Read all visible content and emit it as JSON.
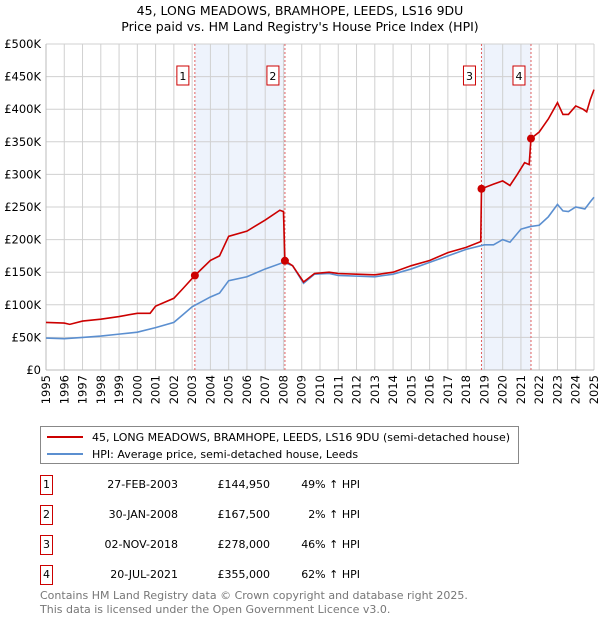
{
  "chart_data": {
    "type": "line",
    "title": "45, LONG MEADOWS, BRAMHOPE, LEEDS, LS16 9DU",
    "subtitle": "Price paid vs. HM Land Registry's House Price Index (HPI)",
    "xlim": [
      1995,
      2025
    ],
    "ylim": [
      0,
      500000
    ],
    "x_ticks": [
      "1995",
      "1996",
      "1997",
      "1998",
      "1999",
      "2000",
      "2001",
      "2002",
      "2003",
      "2004",
      "2005",
      "2006",
      "2007",
      "2008",
      "2009",
      "2010",
      "2011",
      "2012",
      "2013",
      "2014",
      "2015",
      "2016",
      "2017",
      "2018",
      "2019",
      "2020",
      "2021",
      "2022",
      "2023",
      "2024",
      "2025"
    ],
    "y_ticks": [
      {
        "v": 0,
        "label": "£0"
      },
      {
        "v": 50000,
        "label": "£50K"
      },
      {
        "v": 100000,
        "label": "£100K"
      },
      {
        "v": 150000,
        "label": "£150K"
      },
      {
        "v": 200000,
        "label": "£200K"
      },
      {
        "v": 250000,
        "label": "£250K"
      },
      {
        "v": 300000,
        "label": "£300K"
      },
      {
        "v": 350000,
        "label": "£350K"
      },
      {
        "v": 400000,
        "label": "£400K"
      },
      {
        "v": 450000,
        "label": "£450K"
      },
      {
        "v": 500000,
        "label": "£500K"
      }
    ],
    "grid": true,
    "series": [
      {
        "name": "45, LONG MEADOWS, BRAMHOPE, LEEDS, LS16 9DU (semi-detached house)",
        "color": "#cc0000",
        "x": [
          1995,
          1996,
          1996.3,
          1997,
          1998,
          1999,
          2000,
          2000.7,
          2001,
          2002,
          2002.5,
          2003.15,
          2004,
          2004.5,
          2005,
          2006,
          2007,
          2007.8,
          2008.0,
          2008.08,
          2008.5,
          2009.1,
          2009.7,
          2010.5,
          2011,
          2012,
          2013,
          2014,
          2015,
          2016,
          2017,
          2018,
          2018.8,
          2018.84,
          2019.5,
          2020,
          2020.4,
          2020.8,
          2021.2,
          2021.45,
          2021.55,
          2022,
          2022.5,
          2023,
          2023.3,
          2023.6,
          2024,
          2024.4,
          2024.6,
          2024.8,
          2025
        ],
        "y": [
          73000,
          72000,
          70000,
          75000,
          78000,
          82000,
          87000,
          87000,
          98000,
          110000,
          125000,
          144950,
          168000,
          175000,
          205000,
          213000,
          230000,
          245000,
          243000,
          167500,
          160000,
          135000,
          148000,
          150000,
          148000,
          147000,
          146000,
          150000,
          160000,
          168000,
          180000,
          188000,
          197000,
          278000,
          285000,
          290000,
          283000,
          300000,
          318000,
          315000,
          355000,
          365000,
          385000,
          410000,
          392000,
          392000,
          405000,
          400000,
          396000,
          415000,
          430000
        ]
      },
      {
        "name": "HPI: Average price, semi-detached house, Leeds",
        "color": "#5b8fd0",
        "x": [
          1995,
          1996,
          1997,
          1998,
          1999,
          2000,
          2001,
          2002,
          2002.5,
          2003,
          2004,
          2004.5,
          2005,
          2006,
          2007,
          2008,
          2008.5,
          2009.1,
          2009.7,
          2010.5,
          2011,
          2012,
          2013,
          2014,
          2015,
          2016,
          2017,
          2018,
          2019,
          2019.5,
          2020,
          2020.4,
          2021,
          2021.5,
          2022,
          2022.5,
          2023,
          2023.3,
          2023.6,
          2024,
          2024.5,
          2024.8,
          2025
        ],
        "y": [
          49000,
          48000,
          50000,
          52000,
          55000,
          58000,
          65000,
          73000,
          85000,
          97000,
          112000,
          118000,
          137000,
          143000,
          155000,
          165000,
          160000,
          133000,
          147000,
          148000,
          145000,
          144000,
          143000,
          147000,
          155000,
          165000,
          175000,
          185000,
          192000,
          192000,
          200000,
          196000,
          216000,
          220000,
          222000,
          235000,
          254000,
          244000,
          243000,
          250000,
          247000,
          258000,
          265000
        ]
      }
    ],
    "shaded_ranges": [
      [
        2003.15,
        2008.08
      ],
      [
        2018.84,
        2021.55
      ]
    ],
    "sales": [
      {
        "n": "1",
        "x": 2003.15,
        "y": 144950,
        "date": "27-FEB-2003",
        "price": "£144,950",
        "hpi": "49% ↑ HPI"
      },
      {
        "n": "2",
        "x": 2008.08,
        "y": 167500,
        "date": "30-JAN-2008",
        "price": "£167,500",
        "hpi": "2% ↑ HPI"
      },
      {
        "n": "3",
        "x": 2018.84,
        "y": 278000,
        "date": "02-NOV-2018",
        "price": "£278,000",
        "hpi": "46% ↑ HPI"
      },
      {
        "n": "4",
        "x": 2021.55,
        "y": 355000,
        "date": "20-JUL-2021",
        "price": "£355,000",
        "hpi": "62% ↑ HPI"
      }
    ],
    "legend_placement": "bottom"
  },
  "footer": {
    "line1": "Contains HM Land Registry data © Crown copyright and database right 2025.",
    "line2": "This data is licensed under the Open Government Licence v3.0."
  }
}
